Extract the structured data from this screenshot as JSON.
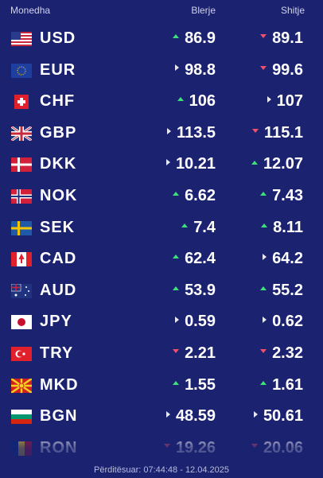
{
  "header": {
    "currency": "Monedha",
    "buy": "Blerje",
    "sell": "Shitje"
  },
  "rows": [
    {
      "code": "USD",
      "buy": "86.9",
      "buy_trend": "up",
      "sell": "89.1",
      "sell_trend": "down"
    },
    {
      "code": "EUR",
      "buy": "98.8",
      "buy_trend": "same",
      "sell": "99.6",
      "sell_trend": "down"
    },
    {
      "code": "CHF",
      "buy": "106",
      "buy_trend": "up",
      "sell": "107",
      "sell_trend": "same"
    },
    {
      "code": "GBP",
      "buy": "113.5",
      "buy_trend": "same",
      "sell": "115.1",
      "sell_trend": "down"
    },
    {
      "code": "DKK",
      "buy": "10.21",
      "buy_trend": "same",
      "sell": "12.07",
      "sell_trend": "up"
    },
    {
      "code": "NOK",
      "buy": "6.62",
      "buy_trend": "up",
      "sell": "7.43",
      "sell_trend": "up"
    },
    {
      "code": "SEK",
      "buy": "7.4",
      "buy_trend": "up",
      "sell": "8.11",
      "sell_trend": "up"
    },
    {
      "code": "CAD",
      "buy": "62.4",
      "buy_trend": "up",
      "sell": "64.2",
      "sell_trend": "same"
    },
    {
      "code": "AUD",
      "buy": "53.9",
      "buy_trend": "up",
      "sell": "55.2",
      "sell_trend": "up"
    },
    {
      "code": "JPY",
      "buy": "0.59",
      "buy_trend": "same",
      "sell": "0.62",
      "sell_trend": "same"
    },
    {
      "code": "TRY",
      "buy": "2.21",
      "buy_trend": "down",
      "sell": "2.32",
      "sell_trend": "down"
    },
    {
      "code": "MKD",
      "buy": "1.55",
      "buy_trend": "up",
      "sell": "1.61",
      "sell_trend": "up"
    },
    {
      "code": "BGN",
      "buy": "48.59",
      "buy_trend": "same",
      "sell": "50.61",
      "sell_trend": "same"
    },
    {
      "code": "RON",
      "buy": "19.26",
      "buy_trend": "down",
      "sell": "20.06",
      "sell_trend": "down"
    }
  ],
  "footer": "Përditësuar: 07:44:48 - 12.04.2025"
}
